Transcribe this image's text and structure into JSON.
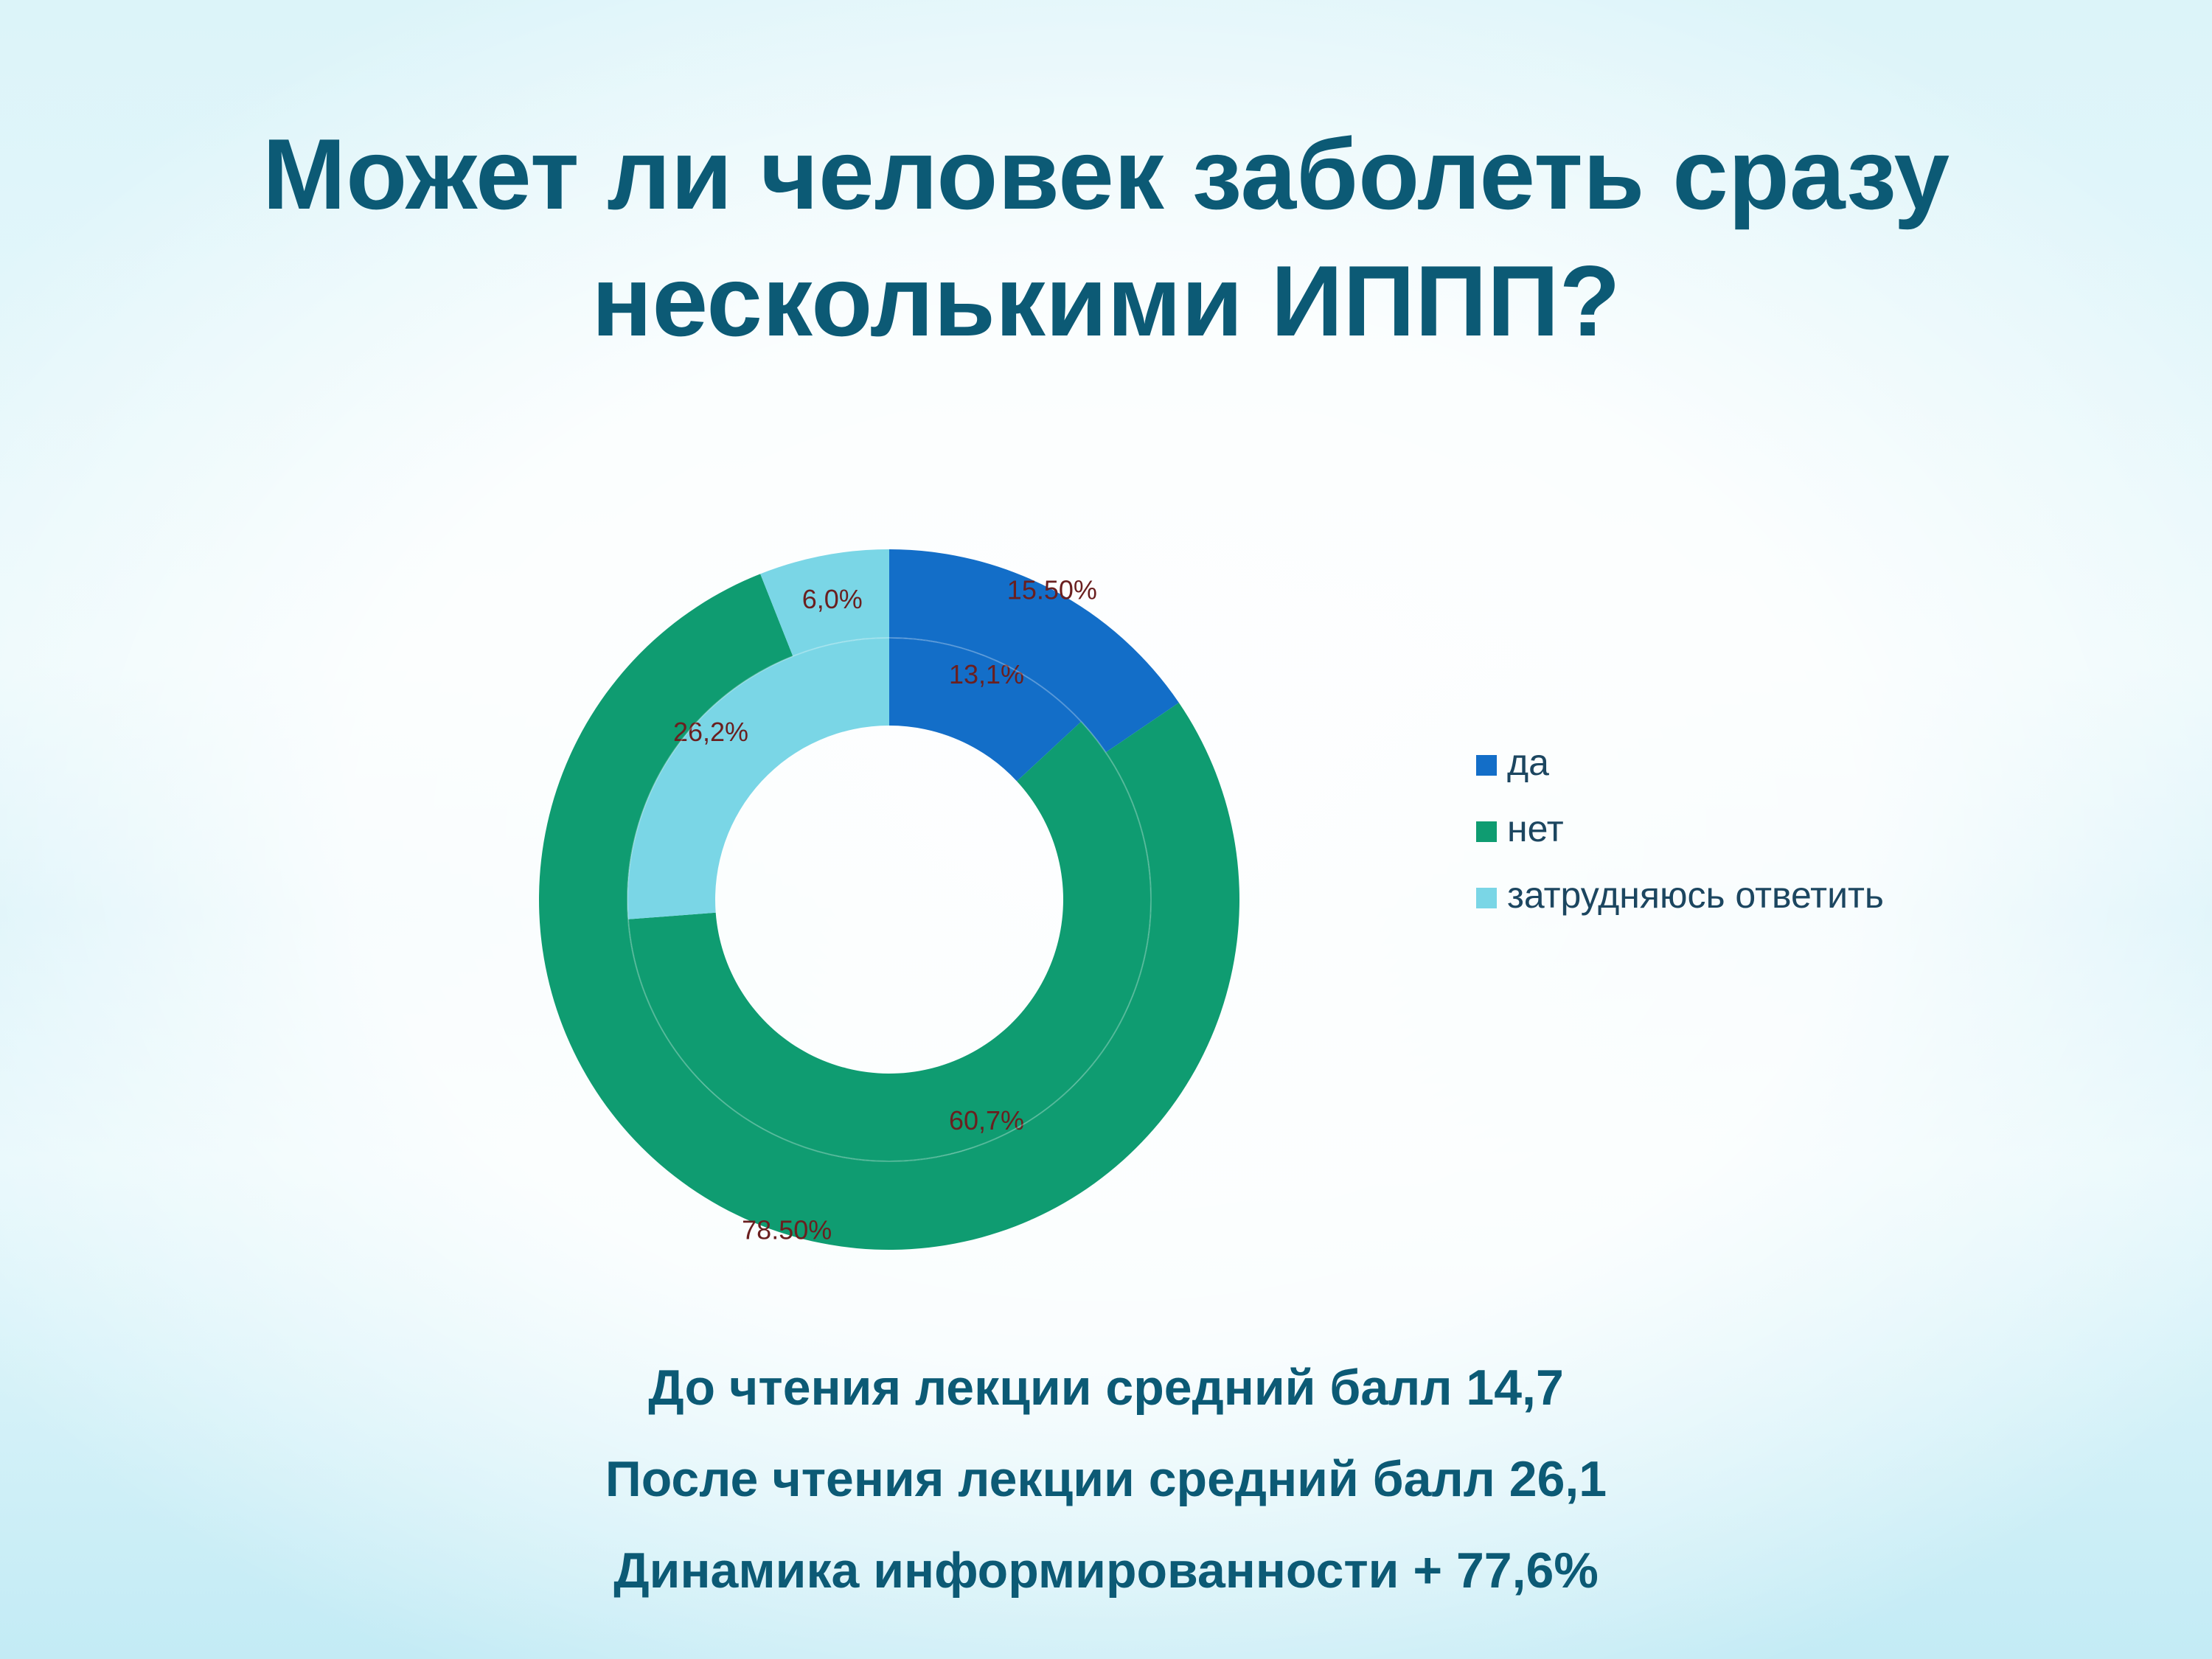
{
  "title": {
    "line1": "Может ли человек заболеть сразу",
    "line2": "несколькими ИППП?"
  },
  "chart_data": {
    "type": "pie",
    "subtype": "doughnut",
    "categories": [
      "да",
      "нет",
      "затрудняюсь ответить"
    ],
    "colors": [
      "#136ec8",
      "#0f9c71",
      "#7ad6e6"
    ],
    "series": [
      {
        "ring": "outer",
        "values": [
          15.5,
          78.5,
          6.0
        ],
        "labels": [
          "15.50%",
          "78.50%",
          "6,0%"
        ]
      },
      {
        "ring": "inner",
        "values": [
          13.1,
          60.7,
          26.2
        ],
        "labels": [
          "13,1%",
          "60,7%",
          "26,2%"
        ]
      }
    ],
    "legend": {
      "position": "right",
      "entries": [
        "да",
        "нет",
        "затрудняюсь ответить"
      ]
    },
    "label_color": "#6a1f1f"
  },
  "stats": [
    "До чтения лекции средний балл 14,7",
    "После чтения лекции средний балл 26,1",
    "Динамика информированности + 77,6%"
  ]
}
